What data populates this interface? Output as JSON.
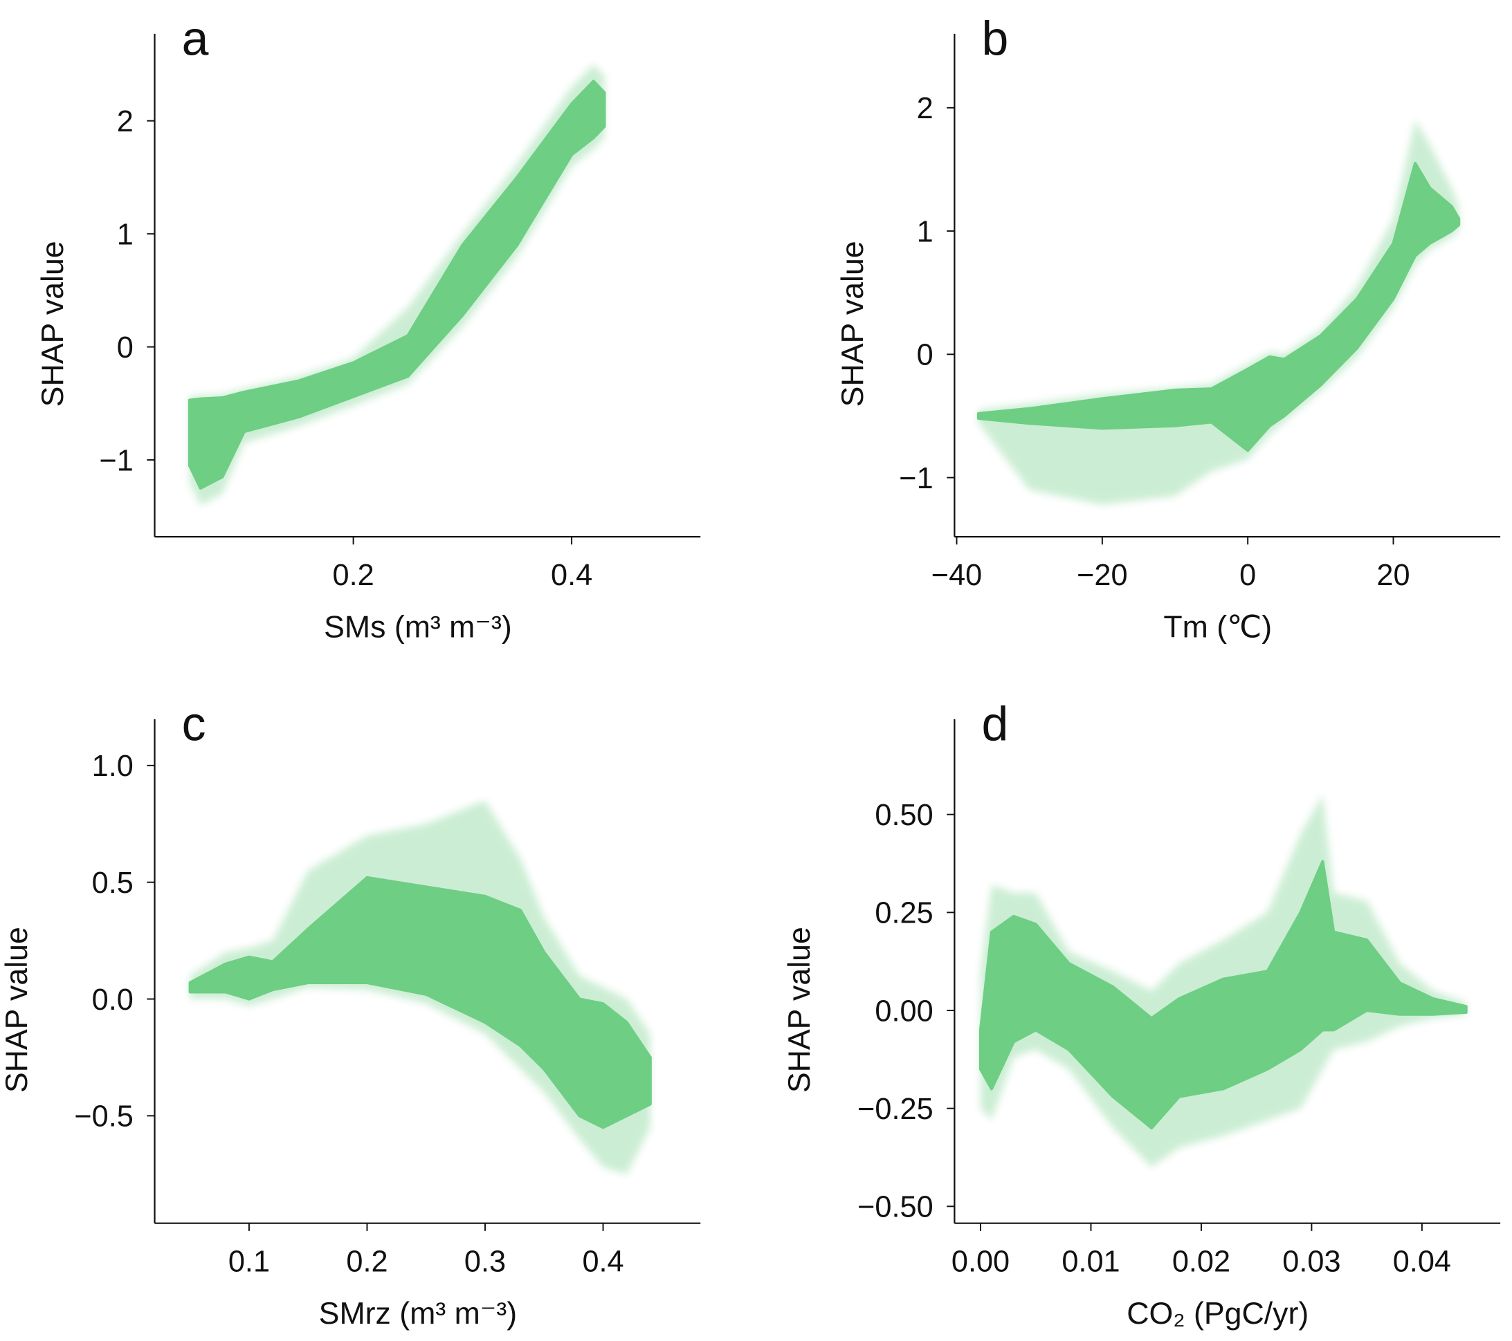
{
  "chart_data": [
    {
      "type": "scatter",
      "panel_letter": "a",
      "xlabel": "SMs (m³ m⁻³)",
      "ylabel": "SHAP value",
      "xlim": [
        0.018,
        0.518
      ],
      "ylim": [
        -1.68,
        2.77
      ],
      "xticks": [
        {
          "v": 0.2,
          "label": "0.2"
        },
        {
          "v": 0.4,
          "label": "0.4"
        }
      ],
      "yticks": [
        {
          "v": -1,
          "label": "−1"
        },
        {
          "v": 0,
          "label": "0"
        },
        {
          "v": 1,
          "label": "1"
        },
        {
          "v": 2,
          "label": "2"
        }
      ],
      "color": "#6dce84",
      "density_envelope": {
        "x": [
          0.05,
          0.06,
          0.08,
          0.1,
          0.15,
          0.2,
          0.25,
          0.3,
          0.35,
          0.4,
          0.42,
          0.43
        ],
        "core_upper": [
          -0.47,
          -0.46,
          -0.45,
          -0.4,
          -0.3,
          -0.14,
          0.1,
          0.9,
          1.5,
          2.15,
          2.35,
          2.25
        ],
        "core_lower": [
          -1.05,
          -1.25,
          -1.15,
          -0.75,
          -0.62,
          -0.44,
          -0.26,
          0.28,
          0.9,
          1.7,
          1.85,
          1.95
        ],
        "halo_upper": [
          -0.44,
          -0.43,
          -0.42,
          -0.37,
          -0.26,
          -0.1,
          0.35,
          1.0,
          1.62,
          2.3,
          2.5,
          2.4
        ],
        "halo_lower": [
          -1.2,
          -1.4,
          -1.3,
          -0.85,
          -0.7,
          -0.52,
          -0.33,
          0.18,
          0.8,
          1.6,
          1.75,
          1.85
        ]
      }
    },
    {
      "type": "scatter",
      "panel_letter": "b",
      "xlabel": "Tm (℃)",
      "ylabel": "SHAP value",
      "xlim": [
        -40.3,
        34.7
      ],
      "ylim": [
        -1.48,
        2.6
      ],
      "xticks": [
        {
          "v": -40,
          "label": "−40"
        },
        {
          "v": -20,
          "label": "−20"
        },
        {
          "v": 0,
          "label": "0"
        },
        {
          "v": 20,
          "label": "20"
        }
      ],
      "yticks": [
        {
          "v": -1,
          "label": "−1"
        },
        {
          "v": 0,
          "label": "0"
        },
        {
          "v": 1,
          "label": "1"
        },
        {
          "v": 2,
          "label": "2"
        }
      ],
      "color": "#6dce84",
      "density_envelope": {
        "x": [
          -37,
          -30,
          -20,
          -10,
          -5,
          0,
          3,
          5,
          10,
          15,
          20,
          23,
          25,
          28,
          29
        ],
        "core_upper": [
          -0.48,
          -0.44,
          -0.36,
          -0.29,
          -0.28,
          -0.12,
          -0.02,
          -0.04,
          0.15,
          0.45,
          0.9,
          1.55,
          1.35,
          1.2,
          1.1
        ],
        "core_lower": [
          -0.52,
          -0.56,
          -0.6,
          -0.58,
          -0.55,
          -0.78,
          -0.58,
          -0.5,
          -0.25,
          0.05,
          0.45,
          0.8,
          0.9,
          1.0,
          1.05
        ],
        "halo_upper": [
          -0.45,
          -0.4,
          -0.32,
          -0.27,
          -0.24,
          -0.08,
          0.02,
          0.0,
          0.2,
          0.55,
          1.1,
          1.9,
          1.7,
          1.35,
          1.2
        ],
        "halo_lower": [
          -0.56,
          -1.1,
          -1.22,
          -1.15,
          -0.95,
          -0.85,
          -0.65,
          -0.55,
          -0.3,
          -0.02,
          0.38,
          0.72,
          0.85,
          0.95,
          1.0
        ]
      }
    },
    {
      "type": "scatter",
      "panel_letter": "c",
      "xlabel": "SMrz (m³ m⁻³)",
      "ylabel": "SHAP value",
      "xlim": [
        0.02,
        0.4825
      ],
      "ylim": [
        -0.96,
        1.198
      ],
      "xticks": [
        {
          "v": 0.1,
          "label": "0.1"
        },
        {
          "v": 0.2,
          "label": "0.2"
        },
        {
          "v": 0.3,
          "label": "0.3"
        },
        {
          "v": 0.4,
          "label": "0.4"
        }
      ],
      "yticks": [
        {
          "v": -0.5,
          "label": "−0.5"
        },
        {
          "v": 0.0,
          "label": "0.0"
        },
        {
          "v": 0.5,
          "label": "0.5"
        },
        {
          "v": 1.0,
          "label": "1.0"
        }
      ],
      "color": "#6dce84",
      "density_envelope": {
        "x": [
          0.05,
          0.08,
          0.1,
          0.12,
          0.15,
          0.2,
          0.25,
          0.3,
          0.33,
          0.35,
          0.38,
          0.4,
          0.42,
          0.44
        ],
        "core_upper": [
          0.07,
          0.15,
          0.18,
          0.16,
          0.3,
          0.52,
          0.48,
          0.44,
          0.38,
          0.2,
          0.0,
          -0.02,
          -0.1,
          -0.25
        ],
        "core_lower": [
          0.03,
          0.03,
          0.0,
          0.04,
          0.07,
          0.07,
          0.02,
          -0.1,
          -0.2,
          -0.3,
          -0.5,
          -0.55,
          -0.5,
          -0.45
        ],
        "halo_upper": [
          0.1,
          0.2,
          0.22,
          0.25,
          0.55,
          0.7,
          0.75,
          0.85,
          0.6,
          0.35,
          0.1,
          0.05,
          0.0,
          -0.15
        ],
        "halo_lower": [
          0.0,
          0.0,
          -0.03,
          0.0,
          0.05,
          0.04,
          -0.02,
          -0.15,
          -0.3,
          -0.4,
          -0.6,
          -0.72,
          -0.75,
          -0.55
        ]
      }
    },
    {
      "type": "scatter",
      "panel_letter": "d",
      "xlabel": "CO₂ (PgC/yr)",
      "ylabel": "SHAP value",
      "xlim": [
        -0.00236,
        0.0471
      ],
      "ylim": [
        -0.543,
        0.743
      ],
      "xticks": [
        {
          "v": 0.0,
          "label": "0.00"
        },
        {
          "v": 0.01,
          "label": "0.01"
        },
        {
          "v": 0.02,
          "label": "0.02"
        },
        {
          "v": 0.03,
          "label": "0.03"
        },
        {
          "v": 0.04,
          "label": "0.04"
        }
      ],
      "yticks": [
        {
          "v": -0.5,
          "label": "−0.50"
        },
        {
          "v": -0.25,
          "label": "−0.25"
        },
        {
          "v": 0.0,
          "label": "0.00"
        },
        {
          "v": 0.25,
          "label": "0.25"
        },
        {
          "v": 0.5,
          "label": "0.50"
        }
      ],
      "color": "#6dce84",
      "density_envelope": {
        "x": [
          0.0,
          0.001,
          0.003,
          0.005,
          0.008,
          0.012,
          0.0155,
          0.018,
          0.022,
          0.026,
          0.029,
          0.031,
          0.032,
          0.035,
          0.038,
          0.041,
          0.044
        ],
        "core_upper": [
          -0.05,
          0.2,
          0.24,
          0.22,
          0.12,
          0.06,
          -0.02,
          0.03,
          0.08,
          0.1,
          0.25,
          0.38,
          0.2,
          0.18,
          0.07,
          0.03,
          0.01
        ],
        "core_lower": [
          -0.15,
          -0.2,
          -0.08,
          -0.05,
          -0.1,
          -0.22,
          -0.3,
          -0.22,
          -0.2,
          -0.15,
          -0.1,
          -0.05,
          -0.05,
          0.0,
          -0.01,
          -0.01,
          -0.005
        ],
        "halo_upper": [
          0.1,
          0.32,
          0.3,
          0.3,
          0.15,
          0.1,
          0.05,
          0.12,
          0.18,
          0.25,
          0.45,
          0.55,
          0.3,
          0.28,
          0.12,
          0.05,
          0.02
        ],
        "halo_lower": [
          -0.25,
          -0.28,
          -0.12,
          -0.1,
          -0.15,
          -0.3,
          -0.4,
          -0.35,
          -0.32,
          -0.28,
          -0.25,
          -0.15,
          -0.1,
          -0.08,
          -0.04,
          -0.02,
          -0.01
        ]
      }
    }
  ]
}
